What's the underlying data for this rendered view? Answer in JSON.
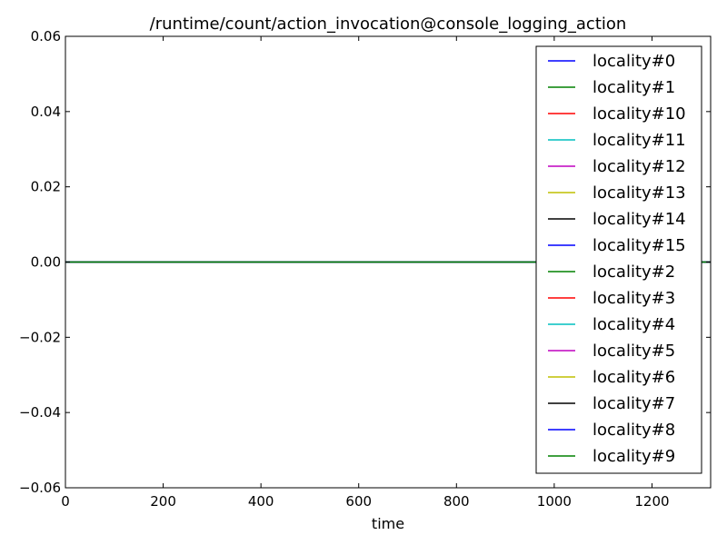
{
  "chart_data": {
    "type": "line",
    "title": "/runtime/count/action_invocation@console_logging_action",
    "xlabel": "time",
    "ylabel": "",
    "xlim": [
      0,
      1320
    ],
    "ylim": [
      -0.06,
      0.06
    ],
    "x_ticks": [
      0,
      200,
      400,
      600,
      800,
      1000,
      1200
    ],
    "y_ticks": [
      -0.06,
      -0.04,
      -0.02,
      0.0,
      0.02,
      0.04,
      0.06
    ],
    "x_tick_labels": [
      "0",
      "200",
      "400",
      "600",
      "800",
      "1000",
      "1200"
    ],
    "y_tick_labels": [
      "−0.06",
      "−0.04",
      "−0.02",
      "0.00",
      "0.02",
      "0.04",
      "0.06"
    ],
    "grid": false,
    "legend_position": "top-right",
    "series": [
      {
        "name": "locality#0",
        "color": "#0000ff",
        "x": [
          0,
          1320
        ],
        "values": [
          0,
          0
        ]
      },
      {
        "name": "locality#1",
        "color": "#008000",
        "x": [
          0,
          1320
        ],
        "values": [
          0,
          0
        ]
      },
      {
        "name": "locality#10",
        "color": "#ff0000",
        "x": [
          0,
          1320
        ],
        "values": [
          0,
          0
        ]
      },
      {
        "name": "locality#11",
        "color": "#00bfbf",
        "x": [
          0,
          1320
        ],
        "values": [
          0,
          0
        ]
      },
      {
        "name": "locality#12",
        "color": "#bf00bf",
        "x": [
          0,
          1320
        ],
        "values": [
          0,
          0
        ]
      },
      {
        "name": "locality#13",
        "color": "#bfbf00",
        "x": [
          0,
          1320
        ],
        "values": [
          0,
          0
        ]
      },
      {
        "name": "locality#14",
        "color": "#000000",
        "x": [
          0,
          1320
        ],
        "values": [
          0,
          0
        ]
      },
      {
        "name": "locality#15",
        "color": "#0000ff",
        "x": [
          0,
          1320
        ],
        "values": [
          0,
          0
        ]
      },
      {
        "name": "locality#2",
        "color": "#008000",
        "x": [
          0,
          1320
        ],
        "values": [
          0,
          0
        ]
      },
      {
        "name": "locality#3",
        "color": "#ff0000",
        "x": [
          0,
          1320
        ],
        "values": [
          0,
          0
        ]
      },
      {
        "name": "locality#4",
        "color": "#00bfbf",
        "x": [
          0,
          1320
        ],
        "values": [
          0,
          0
        ]
      },
      {
        "name": "locality#5",
        "color": "#bf00bf",
        "x": [
          0,
          1320
        ],
        "values": [
          0,
          0
        ]
      },
      {
        "name": "locality#6",
        "color": "#bfbf00",
        "x": [
          0,
          1320
        ],
        "values": [
          0,
          0
        ]
      },
      {
        "name": "locality#7",
        "color": "#000000",
        "x": [
          0,
          1320
        ],
        "values": [
          0,
          0
        ]
      },
      {
        "name": "locality#8",
        "color": "#0000ff",
        "x": [
          0,
          1320
        ],
        "values": [
          0,
          0
        ]
      },
      {
        "name": "locality#9",
        "color": "#008000",
        "x": [
          0,
          1320
        ],
        "values": [
          0,
          0
        ]
      }
    ]
  }
}
